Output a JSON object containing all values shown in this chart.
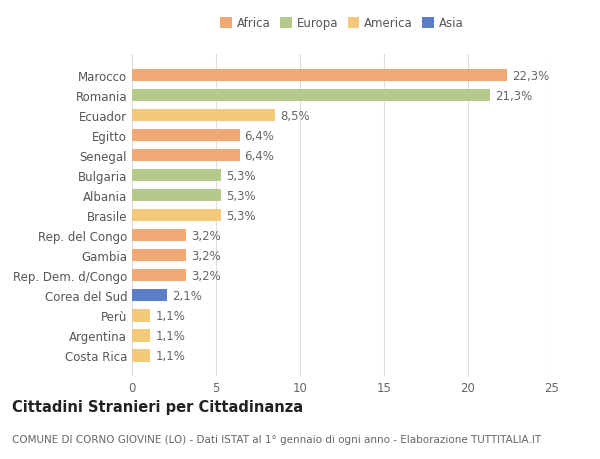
{
  "categories": [
    "Costa Rica",
    "Argentina",
    "Perù",
    "Corea del Sud",
    "Rep. Dem. d/Congo",
    "Gambia",
    "Rep. del Congo",
    "Brasile",
    "Albania",
    "Bulgaria",
    "Senegal",
    "Egitto",
    "Ecuador",
    "Romania",
    "Marocco"
  ],
  "values": [
    1.1,
    1.1,
    1.1,
    2.1,
    3.2,
    3.2,
    3.2,
    5.3,
    5.3,
    5.3,
    6.4,
    6.4,
    8.5,
    21.3,
    22.3
  ],
  "colors": [
    "#F5C97A",
    "#F5C97A",
    "#F5C97A",
    "#5B7EC9",
    "#F0A875",
    "#F0A875",
    "#F0A875",
    "#F5C97A",
    "#B5C98A",
    "#B5C98A",
    "#F0A875",
    "#F0A875",
    "#F5C97A",
    "#B5C98A",
    "#F0A875"
  ],
  "labels": [
    "1,1%",
    "1,1%",
    "1,1%",
    "2,1%",
    "3,2%",
    "3,2%",
    "3,2%",
    "5,3%",
    "5,3%",
    "5,3%",
    "6,4%",
    "6,4%",
    "8,5%",
    "21,3%",
    "22,3%"
  ],
  "legend": {
    "Africa": "#F0A875",
    "Europa": "#B5C98A",
    "America": "#F5C97A",
    "Asia": "#5B7EC9"
  },
  "title": "Cittadini Stranieri per Cittadinanza",
  "subtitle": "COMUNE DI CORNO GIOVINE (LO) - Dati ISTAT al 1° gennaio di ogni anno - Elaborazione TUTTITALIA.IT",
  "xlim": [
    0,
    25
  ],
  "xticks": [
    0,
    5,
    10,
    15,
    20,
    25
  ],
  "background_color": "#ffffff",
  "grid_color": "#dddddd",
  "bar_height": 0.62,
  "label_fontsize": 8.5,
  "title_fontsize": 10.5,
  "subtitle_fontsize": 7.5,
  "tick_fontsize": 8.5
}
